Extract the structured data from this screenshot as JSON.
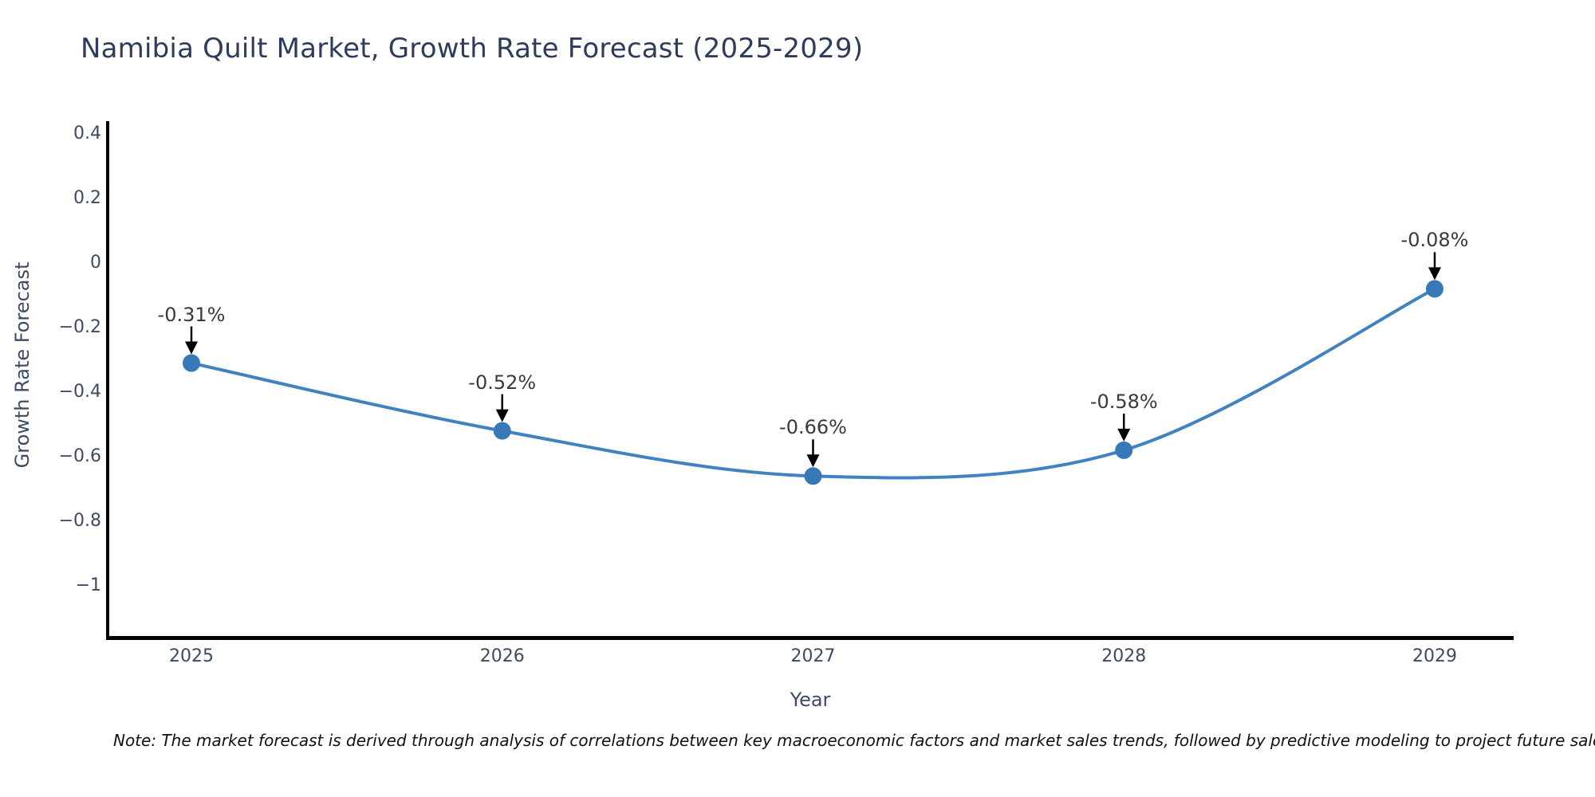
{
  "chart_data": {
    "type": "line",
    "title": "Namibia Quilt Market, Growth Rate Forecast (2025-2029)",
    "xlabel": "Year",
    "ylabel": "Growth Rate Forecast",
    "x": [
      "2025",
      "2026",
      "2027",
      "2028",
      "2029"
    ],
    "values": [
      -0.31,
      -0.52,
      -0.66,
      -0.58,
      -0.08
    ],
    "point_labels": [
      "-0.31%",
      "-0.52%",
      "-0.66%",
      "-0.58%",
      "-0.08%"
    ],
    "ytick_values": [
      0.4,
      0.2,
      0,
      -0.2,
      -0.4,
      -0.6,
      -0.8,
      -1
    ],
    "ytick_labels": [
      "0.4",
      "0.2",
      "0",
      "−0.2",
      "−0.4",
      "−0.6",
      "−0.8",
      "−1"
    ],
    "ylim": [
      -1.16,
      0.44
    ],
    "grid": false,
    "legend": "none",
    "smoothing": "spline",
    "annotation_style": "arrow-down-to-point"
  },
  "footnote": "Note: The market forecast is derived through analysis of correlations between key macroeconomic factors and market sales trends, followed by predictive modeling to project future sales",
  "colors": {
    "line": "#4182c0",
    "marker": "#3878b6",
    "spine": "#000000",
    "arrow": "#000000",
    "title_text": "#2e3c5c",
    "tick_text": "#3d4a61",
    "annotation_text": "#3a3a3a",
    "background": "#ffffff"
  }
}
